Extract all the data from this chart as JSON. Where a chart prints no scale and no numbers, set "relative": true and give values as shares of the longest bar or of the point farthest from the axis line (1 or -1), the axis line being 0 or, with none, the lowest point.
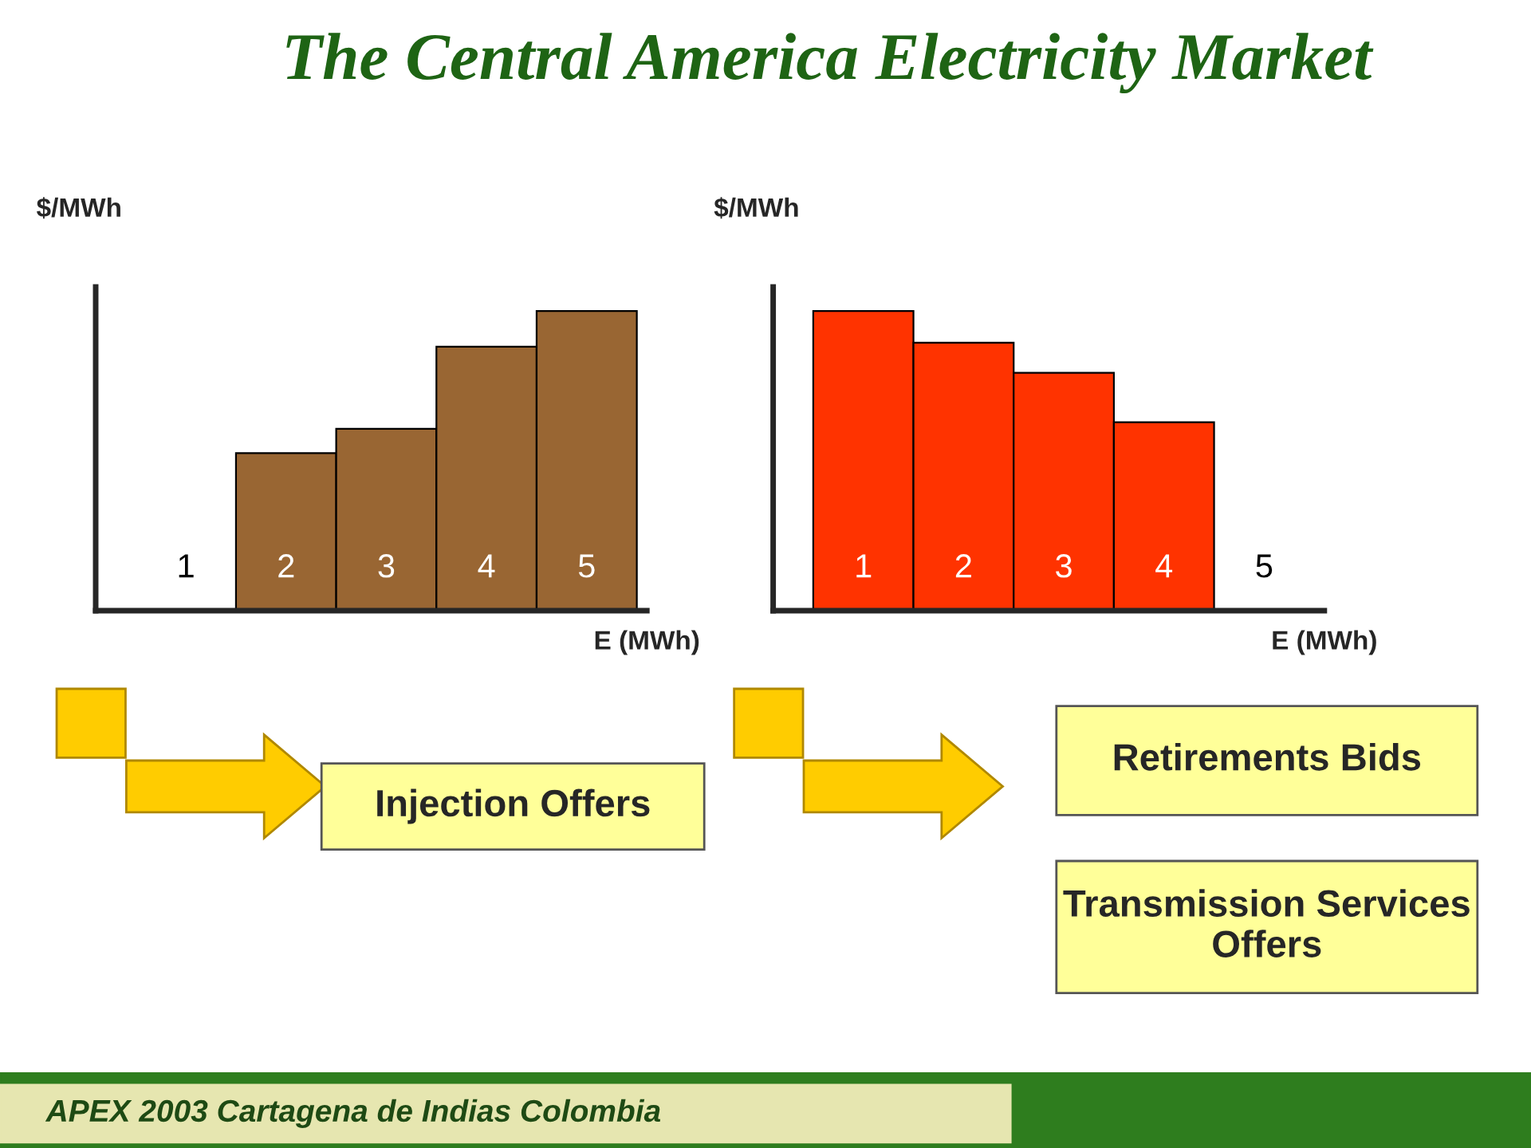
{
  "chart_data": [
    {
      "type": "bar",
      "title": "The Central America Electricity Market",
      "ylabel": "$/MWh",
      "xlabel": "E (MWh)",
      "relative": true,
      "categories": [
        "1",
        "2",
        "3",
        "4",
        "5"
      ],
      "values": [
        0,
        0.526,
        0.607,
        0.881,
        1
      ],
      "color": "#996633",
      "legend": false,
      "annotations": [
        "Injection Offers",
        "APEX 2003 Cartagena de Indias Colombia"
      ]
    },
    {
      "type": "bar",
      "ylabel": "$/MWh",
      "xlabel": "E (MWh)",
      "relative": true,
      "categories": [
        "1",
        "2",
        "3",
        "4",
        "5"
      ],
      "values": [
        1,
        0.894,
        0.794,
        0.629,
        0
      ],
      "color": "#ff3300",
      "legend": false,
      "annotations": [
        "Retirements Bids",
        "Transmission Services Offers"
      ]
    }
  ]
}
